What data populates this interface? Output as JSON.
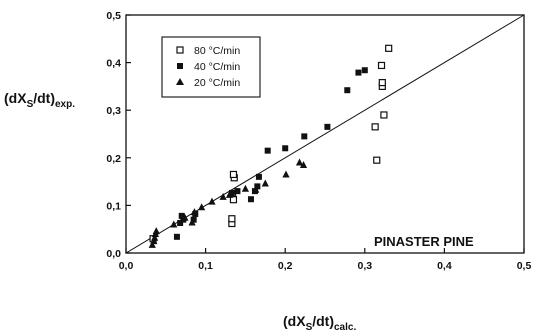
{
  "chart_data": {
    "type": "scatter",
    "title": "",
    "xlabel": {
      "main": "(dX",
      "sub1": "S",
      "mid": "/dt)",
      "sub2": "calc."
    },
    "ylabel": {
      "main": "(dX",
      "sub1": "S",
      "mid": "/dt)",
      "sub2": "exp."
    },
    "xlim": [
      0,
      0.5
    ],
    "ylim": [
      0,
      0.5
    ],
    "x_ticks": [
      0,
      0.1,
      0.2,
      0.3,
      0.4,
      0.5
    ],
    "y_ticks": [
      0,
      0.1,
      0.2,
      0.3,
      0.4,
      0.5
    ],
    "x_tick_labels": [
      "0,0",
      "0,1",
      "0,2",
      "0,3",
      "0,4",
      "0,5"
    ],
    "y_tick_labels": [
      "0,0",
      "0,1",
      "0,2",
      "0,3",
      "0,4",
      "0,5"
    ],
    "grid": false,
    "legend_position": "top-left",
    "annotation": "PINASTER PINE",
    "reference_line": {
      "from": [
        0,
        0
      ],
      "to": [
        0.5,
        0.5
      ]
    },
    "series": [
      {
        "name": "80 °C/min",
        "marker": "open-square",
        "points": [
          [
            0.034,
            0.03
          ],
          [
            0.133,
            0.062
          ],
          [
            0.133,
            0.072
          ],
          [
            0.135,
            0.112
          ],
          [
            0.134,
            0.125
          ],
          [
            0.136,
            0.158
          ],
          [
            0.135,
            0.165
          ],
          [
            0.315,
            0.195
          ],
          [
            0.313,
            0.265
          ],
          [
            0.324,
            0.29
          ],
          [
            0.322,
            0.35
          ],
          [
            0.322,
            0.358
          ],
          [
            0.321,
            0.394
          ],
          [
            0.33,
            0.43
          ]
        ]
      },
      {
        "name": "40 °C/min",
        "marker": "filled-square",
        "points": [
          [
            0.064,
            0.034
          ],
          [
            0.068,
            0.063
          ],
          [
            0.072,
            0.07
          ],
          [
            0.07,
            0.078
          ],
          [
            0.085,
            0.07
          ],
          [
            0.087,
            0.082
          ],
          [
            0.133,
            0.124
          ],
          [
            0.14,
            0.13
          ],
          [
            0.157,
            0.113
          ],
          [
            0.162,
            0.13
          ],
          [
            0.165,
            0.14
          ],
          [
            0.167,
            0.16
          ],
          [
            0.178,
            0.215
          ],
          [
            0.2,
            0.22
          ],
          [
            0.224,
            0.245
          ],
          [
            0.253,
            0.265
          ],
          [
            0.278,
            0.342
          ],
          [
            0.292,
            0.379
          ],
          [
            0.3,
            0.384
          ]
        ]
      },
      {
        "name": "20 °C/min",
        "marker": "filled-triangle",
        "points": [
          [
            0.033,
            0.017
          ],
          [
            0.035,
            0.025
          ],
          [
            0.036,
            0.032
          ],
          [
            0.037,
            0.04
          ],
          [
            0.038,
            0.046
          ],
          [
            0.06,
            0.06
          ],
          [
            0.074,
            0.074
          ],
          [
            0.083,
            0.064
          ],
          [
            0.086,
            0.086
          ],
          [
            0.095,
            0.096
          ],
          [
            0.108,
            0.108
          ],
          [
            0.122,
            0.118
          ],
          [
            0.13,
            0.122
          ],
          [
            0.15,
            0.135
          ],
          [
            0.163,
            0.133
          ],
          [
            0.175,
            0.146
          ],
          [
            0.201,
            0.165
          ],
          [
            0.218,
            0.19
          ],
          [
            0.223,
            0.185
          ]
        ]
      }
    ]
  }
}
